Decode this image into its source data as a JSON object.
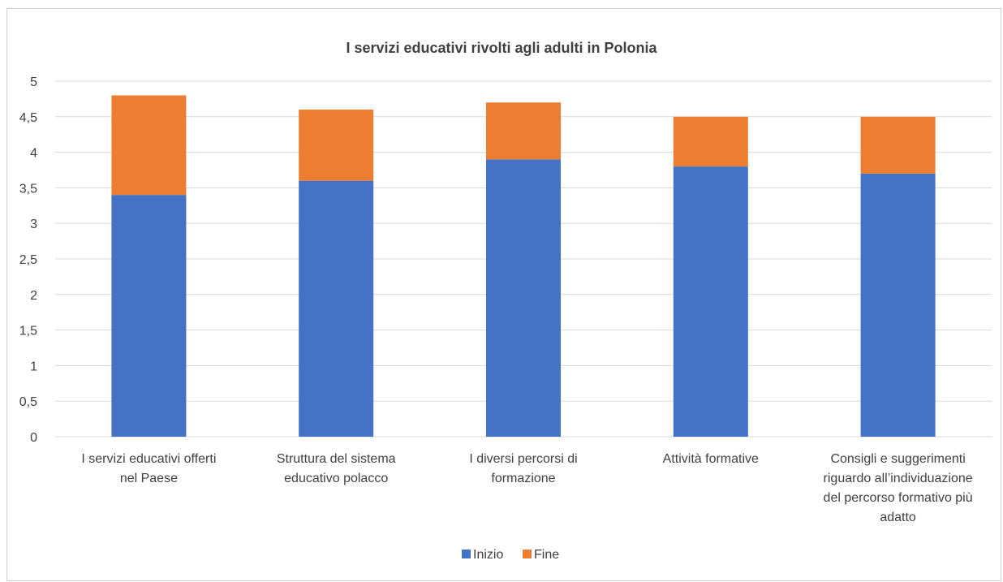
{
  "chart_data": {
    "type": "bar",
    "stacked": true,
    "title": "I servizi educativi rivolti agli adulti in Polonia",
    "categories": [
      [
        "I servizi educativi offerti",
        "nel Paese"
      ],
      [
        "Struttura del sistema",
        "educativo polacco"
      ],
      [
        "I diversi percorsi di",
        "formazione"
      ],
      [
        "Attività formative"
      ],
      [
        "Consigli e suggerimenti",
        "riguardo all’individuazione",
        "del percorso formativo più",
        "adatto"
      ]
    ],
    "series": [
      {
        "name": "Inizio",
        "color": "#4472C4",
        "values": [
          3.4,
          3.6,
          3.9,
          3.8,
          3.7
        ]
      },
      {
        "name": "Fine",
        "color": "#ED7D31",
        "values": [
          1.4,
          1.0,
          0.8,
          0.7,
          0.8
        ]
      }
    ],
    "ylim": [
      0,
      5
    ],
    "yticks": [
      "0",
      "0,5",
      "1",
      "1,5",
      "2",
      "2,5",
      "3",
      "3,5",
      "4",
      "4,5",
      "5"
    ],
    "ytick_values": [
      0,
      0.5,
      1,
      1.5,
      2,
      2.5,
      3,
      3.5,
      4,
      4.5,
      5
    ],
    "grid": true,
    "gridColor": "#d9d9d9",
    "legend_position": "bottom"
  }
}
